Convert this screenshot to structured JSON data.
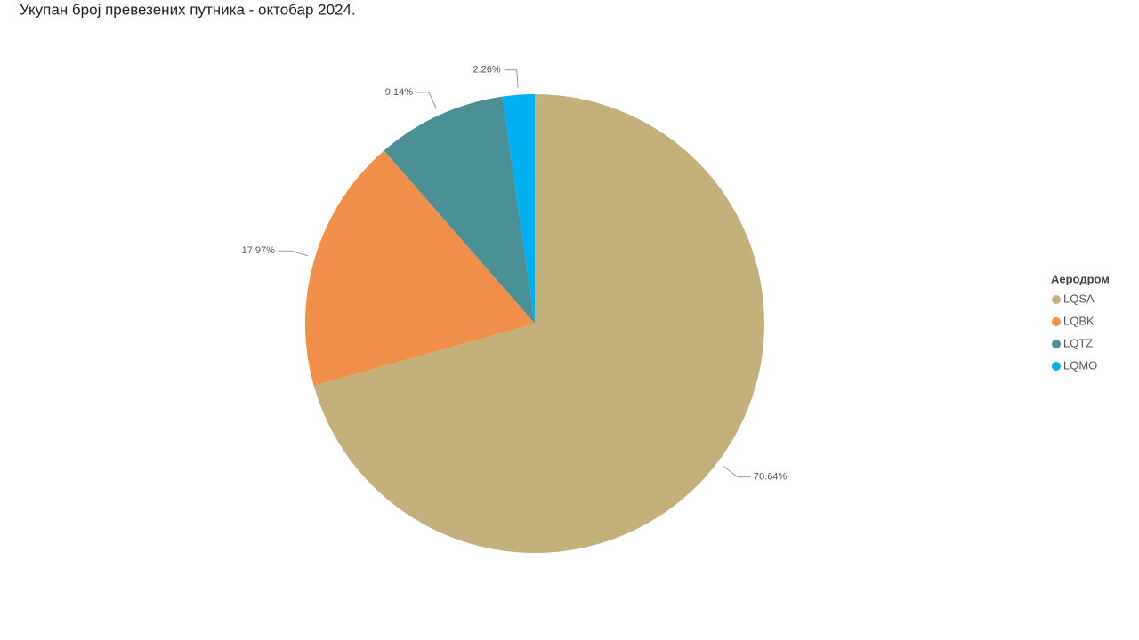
{
  "chart_data": {
    "type": "pie",
    "title": "Укупан број превезених путника - октобар 2024.",
    "legend_title": "Аеродром",
    "legend": "right",
    "categories": [
      "LQSA",
      "LQBK",
      "LQTZ",
      "LQMO"
    ],
    "values": [
      70.64,
      17.97,
      9.14,
      2.26
    ],
    "value_labels": [
      "70.64%",
      "17.97%",
      "9.14%",
      "2.26%"
    ],
    "colors": [
      "#c4b07b",
      "#f08f4a",
      "#4a9094",
      "#00b0f0"
    ]
  }
}
